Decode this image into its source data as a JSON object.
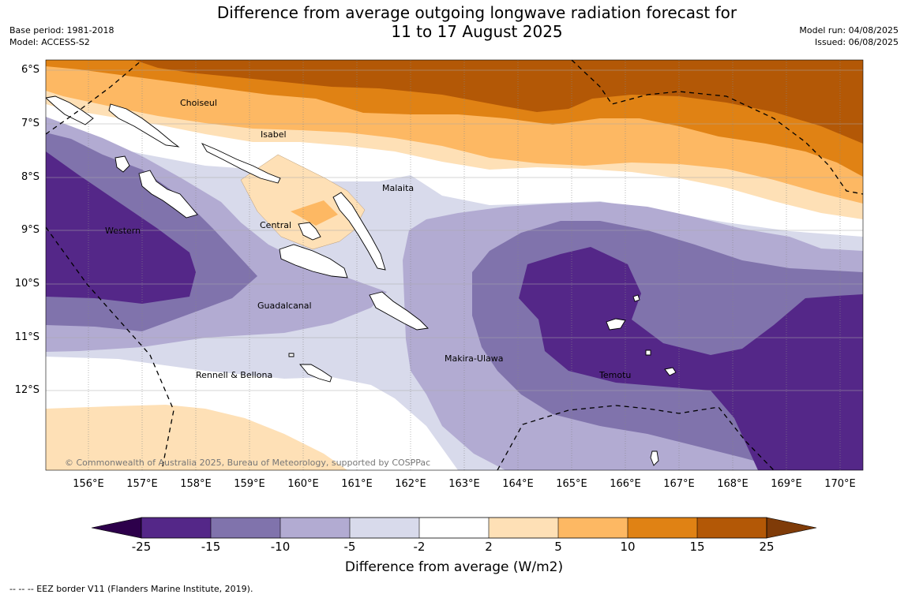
{
  "title": {
    "line1": "Difference from average outgoing longwave radiation forecast for",
    "line2": "11 to 17 August 2025"
  },
  "meta_left": {
    "base_period": "Base period: 1981-2018",
    "model": "Model: ACCESS-S2"
  },
  "meta_right": {
    "model_run": "Model run: 04/08/2025",
    "issued": "Issued: 06/08/2025"
  },
  "map": {
    "lat_labels": [
      "6°S",
      "7°S",
      "8°S",
      "9°S",
      "10°S",
      "11°S",
      "12°S"
    ],
    "lon_labels": [
      "156°E",
      "157°E",
      "158°E",
      "159°E",
      "160°E",
      "161°E",
      "162°E",
      "163°E",
      "164°E",
      "165°E",
      "166°E",
      "167°E",
      "168°E",
      "169°E",
      "170°E"
    ],
    "places": [
      {
        "name": "Choiseul",
        "key": "choiseul"
      },
      {
        "name": "Isabel",
        "key": "isabel"
      },
      {
        "name": "Malaita",
        "key": "malaita"
      },
      {
        "name": "Western",
        "key": "western"
      },
      {
        "name": "Central",
        "key": "central"
      },
      {
        "name": "Guadalcanal",
        "key": "guadalcanal"
      },
      {
        "name": "Makira-Ulawa",
        "key": "makira-ulawa"
      },
      {
        "name": "Temotu",
        "key": "temotu"
      },
      {
        "name": "Rennell & Bellona",
        "key": "rennell-bellona"
      }
    ],
    "copyright": "© Commonwealth of Australia 2025, Bureau of Meteorology, supported by COSPPac"
  },
  "colorbar": {
    "ticks": [
      "-25",
      "-15",
      "-10",
      "-5",
      "-2",
      "2",
      "5",
      "10",
      "15",
      "25"
    ],
    "title": "Difference from average (W/m2)",
    "colors": {
      "under": "#2d004b",
      "lt_m15": "#542788",
      "m15_m10": "#8073ac",
      "m10_m5": "#b2abd2",
      "m5_m2": "#d8daeb",
      "m2_2": "#ffffff",
      "p2_5": "#fee0b6",
      "p5_10": "#fdb863",
      "p10_15": "#e08214",
      "p15_25": "#b35806",
      "over": "#7f3b08"
    }
  },
  "legend_note": "--  --  -- EEZ border V11 (Flanders Marine Institute, 2019)."
}
